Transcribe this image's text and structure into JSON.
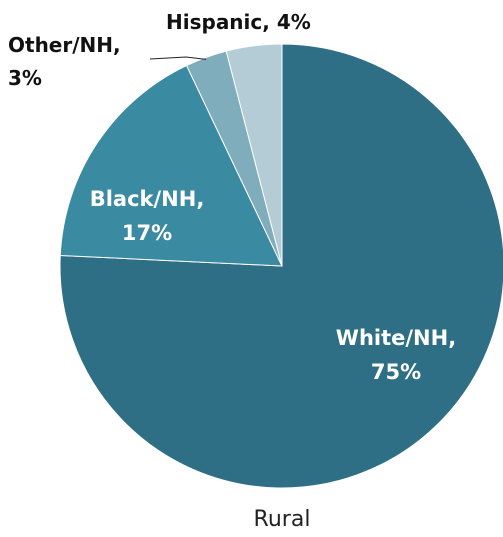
{
  "chart_data": {
    "type": "pie",
    "title": "",
    "caption": "Rural",
    "start_angle_deg": 0,
    "direction": "clockwise",
    "slices": [
      {
        "label": "White/NH",
        "value": 75,
        "display": "75%",
        "color": "#2f6f85"
      },
      {
        "label": "Black/NH",
        "value": 17,
        "display": "17%",
        "color": "#3a8aa2"
      },
      {
        "label": "Other/NH",
        "value": 3,
        "display": "3%",
        "color": "#7fadbc"
      },
      {
        "label": "Hispanic",
        "value": 4,
        "display": "4%",
        "color": "#b3ccd6"
      }
    ],
    "legend": "none"
  }
}
